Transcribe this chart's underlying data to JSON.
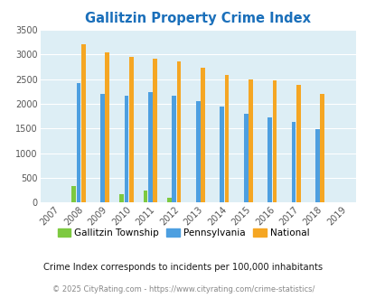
{
  "title": "Gallitzin Property Crime Index",
  "title_color": "#1a6fba",
  "years": [
    2007,
    2008,
    2009,
    2010,
    2011,
    2012,
    2013,
    2014,
    2015,
    2016,
    2017,
    2018,
    2019
  ],
  "gallitzin": [
    0,
    330,
    0,
    165,
    250,
    90,
    0,
    0,
    0,
    0,
    0,
    0,
    0
  ],
  "pennsylvania": [
    0,
    2430,
    2200,
    2170,
    2240,
    2160,
    2060,
    1940,
    1800,
    1730,
    1640,
    1490,
    0
  ],
  "national": [
    0,
    3210,
    3040,
    2960,
    2910,
    2860,
    2730,
    2590,
    2490,
    2470,
    2380,
    2200,
    0
  ],
  "gallitzin_color": "#7dc940",
  "pennsylvania_color": "#4d9fe0",
  "national_color": "#f5a623",
  "bg_color": "#ddeef5",
  "ylim": [
    0,
    3500
  ],
  "yticks": [
    0,
    500,
    1000,
    1500,
    2000,
    2500,
    3000,
    3500
  ],
  "subtitle": "Crime Index corresponds to incidents per 100,000 inhabitants",
  "footer": "© 2025 CityRating.com - https://www.cityrating.com/crime-statistics/",
  "subtitle_color": "#1a1a1a",
  "footer_color": "#888888",
  "bar_width": 0.18,
  "bar_gap": 0.02
}
